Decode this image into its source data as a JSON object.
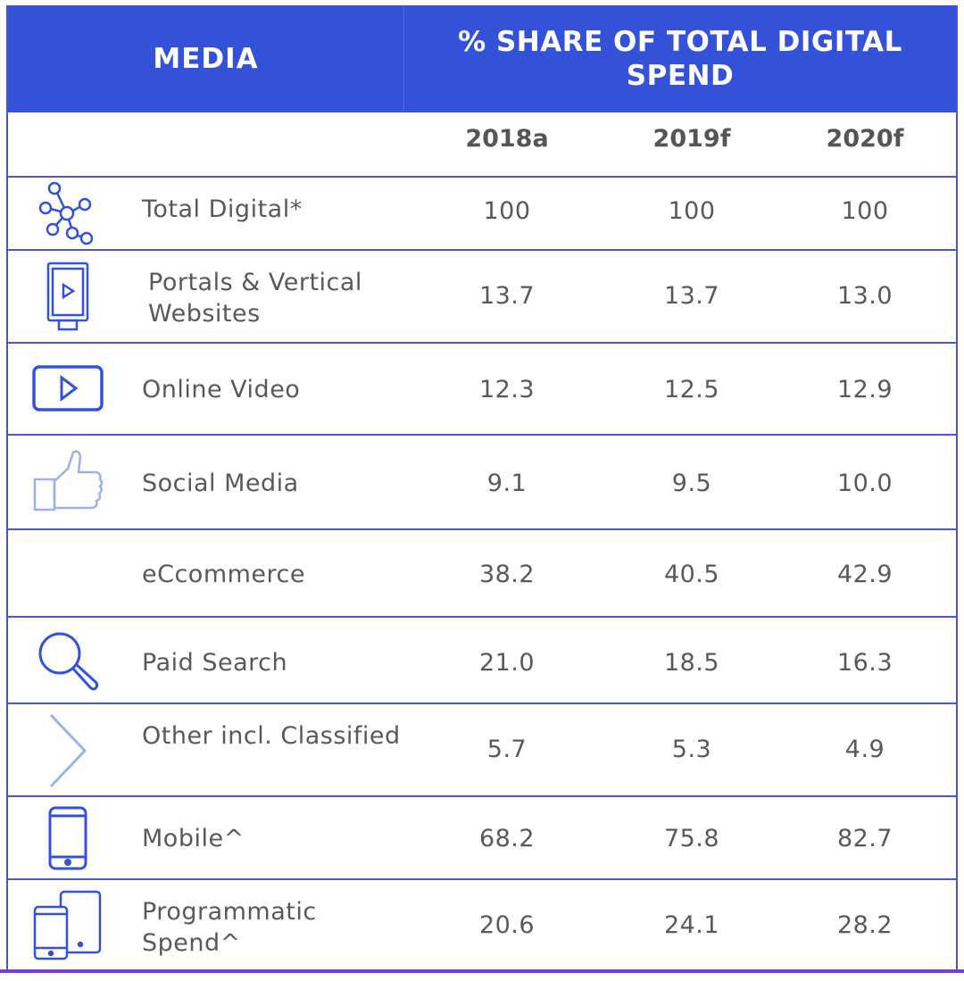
{
  "header": {
    "media_label": "MEDIA",
    "share_label": "% SHARE OF TOTAL DIGITAL SPEND"
  },
  "chart_data": {
    "type": "table",
    "columns": [
      "2018a",
      "2019f",
      "2020f"
    ],
    "rows": [
      {
        "label": "Total Digital*",
        "icon": "network-icon",
        "values": [
          "100",
          "100",
          "100"
        ]
      },
      {
        "label": "Portals & Vertical Websites",
        "icon": "billboard-icon",
        "values": [
          "13.7",
          "13.7",
          "13.0"
        ]
      },
      {
        "label": "Online Video",
        "icon": "video-play-icon",
        "values": [
          "12.3",
          "12.5",
          "12.9"
        ]
      },
      {
        "label": "Social Media",
        "icon": "thumbs-up-icon",
        "values": [
          "9.1",
          "9.5",
          "10.0"
        ]
      },
      {
        "label": "eCcommerce",
        "icon": "",
        "values": [
          "38.2",
          "40.5",
          "42.9"
        ]
      },
      {
        "label": "Paid Search",
        "icon": "magnifier-icon",
        "values": [
          "21.0",
          "18.5",
          "16.3"
        ]
      },
      {
        "label": "Other incl. Classified",
        "icon": "chevron-right-icon",
        "values": [
          "5.7",
          "5.3",
          "4.9"
        ]
      },
      {
        "label": "Mobile^",
        "icon": "smartphone-icon",
        "values": [
          "68.2",
          "75.8",
          "82.7"
        ]
      },
      {
        "label": "Programmatic Spend^",
        "icon": "devices-icon",
        "values": [
          "20.6",
          "24.1",
          "28.2"
        ]
      }
    ]
  },
  "colors": {
    "header_bg": "#3452d8",
    "border": "#4a58c9",
    "icon": "#3452d8",
    "icon_light": "#9fb0e6",
    "text": "#595959",
    "bottom_accent": "#7b3fd0"
  }
}
